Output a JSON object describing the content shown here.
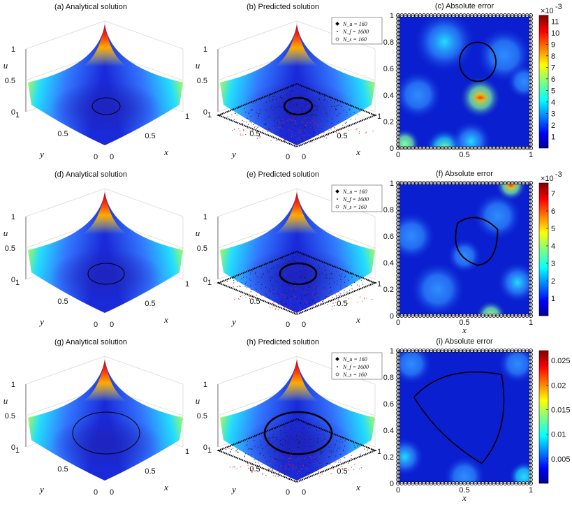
{
  "figure": {
    "rows": [
      {
        "panels": [
          {
            "type": "surface",
            "title": "(a) Analytical solution",
            "xlabel": "x",
            "ylabel": "y",
            "zlabel": "u",
            "zticks": [
              "0",
              "0.5",
              "1"
            ],
            "xticks": [
              "0",
              "0.5",
              "1"
            ],
            "yticks": [
              "0",
              "0.5",
              "1"
            ],
            "contour": "small",
            "points": false
          },
          {
            "type": "surface",
            "title": "(b) Predicted solution",
            "xlabel": "x",
            "ylabel": "y",
            "zlabel": "u",
            "zticks": [
              "0",
              "0.5",
              "1"
            ],
            "xticks": [
              "0",
              "0.5",
              "1"
            ],
            "yticks": [
              "0",
              "0.5",
              "1"
            ],
            "contour": "small",
            "points": true,
            "legend": [
              "N_u = 160",
              "N_f = 1600",
              "N_s = 160"
            ]
          },
          {
            "type": "heatmap",
            "title": "(c) Absolute error",
            "xlabel": "",
            "ylabel": "",
            "xticks": [
              "0",
              "0.5",
              "1"
            ],
            "yticks": [
              "0",
              "0.2",
              "0.4",
              "0.6",
              "0.8",
              "1"
            ],
            "colorbar_ticks": [
              "1",
              "2",
              "3",
              "4",
              "5",
              "6",
              "7",
              "8",
              "9",
              "10",
              "11"
            ],
            "colorbar_max": 11.5,
            "scale_label": "×10",
            "scale_exp": "-3",
            "contour": "small"
          }
        ]
      },
      {
        "panels": [
          {
            "type": "surface",
            "title": "(d) Analytical solution",
            "xlabel": "x",
            "ylabel": "y",
            "zlabel": "u",
            "zticks": [
              "0",
              "0.5",
              "1"
            ],
            "xticks": [
              "0",
              "0.5",
              "1"
            ],
            "yticks": [
              "0",
              "0.5",
              "1"
            ],
            "contour": "mid",
            "points": false
          },
          {
            "type": "surface",
            "title": "(e) Predicted solution",
            "xlabel": "x",
            "ylabel": "y",
            "zlabel": "u",
            "zticks": [
              "0",
              "0.5",
              "1"
            ],
            "xticks": [
              "0",
              "0.5",
              "1"
            ],
            "yticks": [
              "0",
              "0.5",
              "1"
            ],
            "contour": "mid",
            "points": true,
            "legend": [
              "N_u = 160",
              "N_f = 1600",
              "N_s = 160"
            ]
          },
          {
            "type": "heatmap",
            "title": "(f) Absolute error",
            "xlabel": "x",
            "ylabel": "",
            "xticks": [
              "0",
              "0.5",
              "1"
            ],
            "yticks": [
              "0",
              "0.2",
              "0.4",
              "0.6",
              "0.8",
              "1"
            ],
            "colorbar_ticks": [
              "1",
              "2",
              "3",
              "4",
              "5",
              "6",
              "7"
            ],
            "colorbar_max": 7.6,
            "scale_label": "×10",
            "scale_exp": "-3",
            "contour": "mid"
          }
        ]
      },
      {
        "panels": [
          {
            "type": "surface",
            "title": "(g) Analytical solution",
            "xlabel": "x",
            "ylabel": "y",
            "zlabel": "u",
            "zticks": [
              "0",
              "0.5",
              "1"
            ],
            "xticks": [
              "0",
              "0.5",
              "1"
            ],
            "yticks": [
              "0",
              "0.5",
              "1"
            ],
            "contour": "large",
            "points": false
          },
          {
            "type": "surface",
            "title": "(h) Predicted solution",
            "xlabel": "x",
            "ylabel": "y",
            "zlabel": "u",
            "zticks": [
              "0",
              "0.5",
              "1"
            ],
            "xticks": [
              "0",
              "0.5",
              "1"
            ],
            "yticks": [
              "0",
              "0.5",
              "1"
            ],
            "contour": "large",
            "points": true,
            "legend": [
              "N_u = 160",
              "N_f = 1600",
              "N_s = 160"
            ]
          },
          {
            "type": "heatmap",
            "title": "(i) Absolute error",
            "xlabel": "x",
            "ylabel": "",
            "xticks": [
              "0",
              "0.5",
              "1"
            ],
            "yticks": [
              "0",
              "0.2",
              "0.4",
              "0.6",
              "0.8",
              "1"
            ],
            "colorbar_ticks": [
              "0.005",
              "0.01",
              "0.015",
              "0.02",
              "0.025"
            ],
            "colorbar_max": 0.027,
            "scale_label": "",
            "scale_exp": "",
            "contour": "large"
          }
        ]
      }
    ]
  },
  "chart_data": [
    {
      "type": "heatmap",
      "panel": "c",
      "z_range": [
        0,
        0.0115
      ],
      "unit_multiplier": "1e-3"
    },
    {
      "type": "heatmap",
      "panel": "f",
      "z_range": [
        0,
        0.0076
      ],
      "unit_multiplier": "1e-3"
    },
    {
      "type": "heatmap",
      "panel": "i",
      "z_range": [
        0,
        0.027
      ]
    }
  ]
}
